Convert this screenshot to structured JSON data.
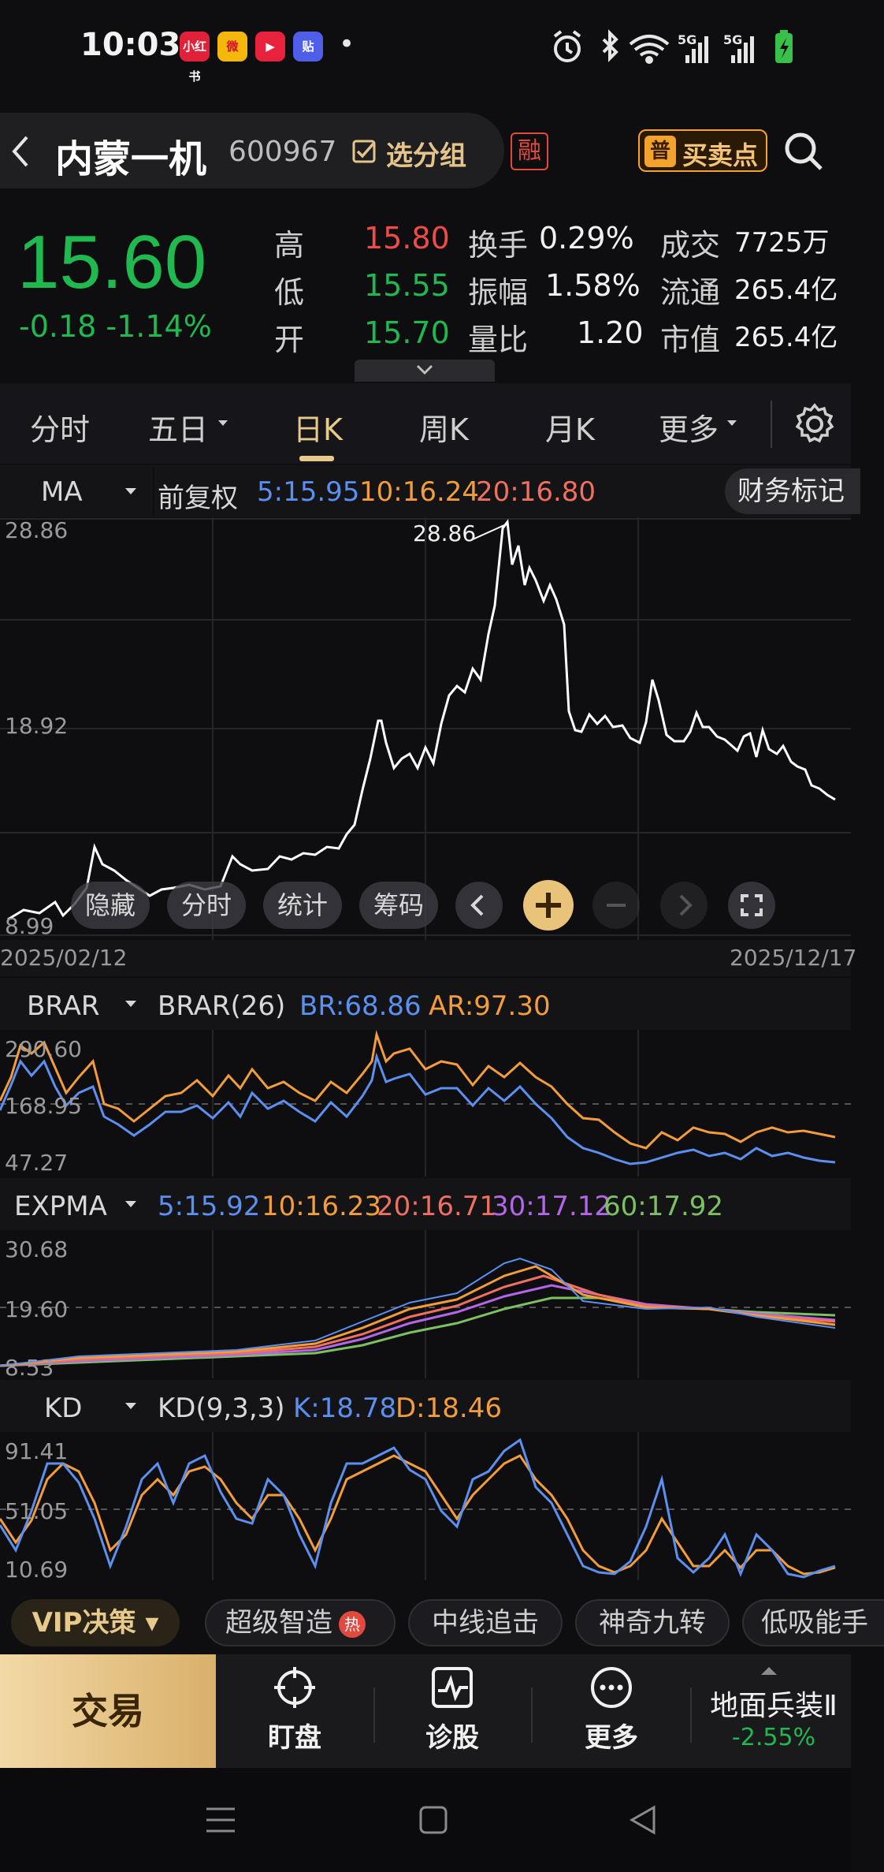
{
  "status": {
    "time": "10:03",
    "app_icons": [
      "小红书",
      "微",
      "▶",
      "贴"
    ],
    "dot": "•",
    "net1": "5G",
    "net2": "5G"
  },
  "header": {
    "name": "内蒙一机",
    "code": "600967",
    "group_btn": "选分组",
    "rong": "融",
    "buysell_prefix": "普",
    "buysell": "买卖点"
  },
  "quote": {
    "price": "15.60",
    "change": "-0.18 -1.14%",
    "rows": [
      {
        "l1": "高",
        "v1": "15.80",
        "l2": "换手",
        "v2": "0.29%",
        "l3": "成交",
        "v3": "7725万"
      },
      {
        "l1": "低",
        "v1": "15.55",
        "l2": "振幅",
        "v2": "1.58%",
        "l3": "流通",
        "v3": "265.4亿"
      },
      {
        "l1": "开",
        "v1": "15.70",
        "l2": "量比",
        "v2": "1.20",
        "l3": "市值",
        "v3": "265.4亿"
      }
    ]
  },
  "periods": [
    "分时",
    "五日",
    "日K",
    "周K",
    "月K",
    "更多"
  ],
  "ma_bar": {
    "selector": "MA",
    "adjust": "前复权",
    "ma5": "5:15.95",
    "ma10": "10:16.24",
    "ma20": "20:16.80",
    "fin_btn": "财务标记"
  },
  "main_chart": {
    "ymax": "28.86",
    "ymid": "18.92",
    "ymin": "8.99",
    "peak_label": "28.86",
    "date_start": "2025/02/12",
    "date_end": "2025/12/17",
    "buttons": [
      "隐藏",
      "分时",
      "统计",
      "筹码"
    ]
  },
  "brar": {
    "selector": "BRAR",
    "name": "BRAR(26)",
    "br": "BR:68.86",
    "ar": "AR:97.30",
    "ymax": "290.60",
    "ymid": "168.95",
    "ymin": "47.27"
  },
  "expma": {
    "selector": "EXPMA",
    "e5": "5:15.92",
    "e10": "10:16.23",
    "e20": "20:16.71",
    "e30": "30:17.12",
    "e60": "60:17.92",
    "ymax": "30.68",
    "ymid": "19.60",
    "ymin": "8.53"
  },
  "kd": {
    "selector": "KD",
    "name": "KD(9,3,3)",
    "k": "K:18.78",
    "d": "D:18.46",
    "ymax": "91.41",
    "ymid": "51.05",
    "ymin": "10.69"
  },
  "vip": {
    "label": "VIP决策",
    "chips": [
      "超级智造",
      "中线追击",
      "神奇九转",
      "低吸能手"
    ],
    "hot": "热"
  },
  "nav": {
    "trade": "交易",
    "items": [
      "盯盘",
      "诊股",
      "更多"
    ],
    "sector": "地面兵装Ⅱ",
    "sector_chg": "-2.55%"
  },
  "colors": {
    "up": "#ef4b49",
    "down": "#1fb94f",
    "accent": "#e8c98c"
  }
}
